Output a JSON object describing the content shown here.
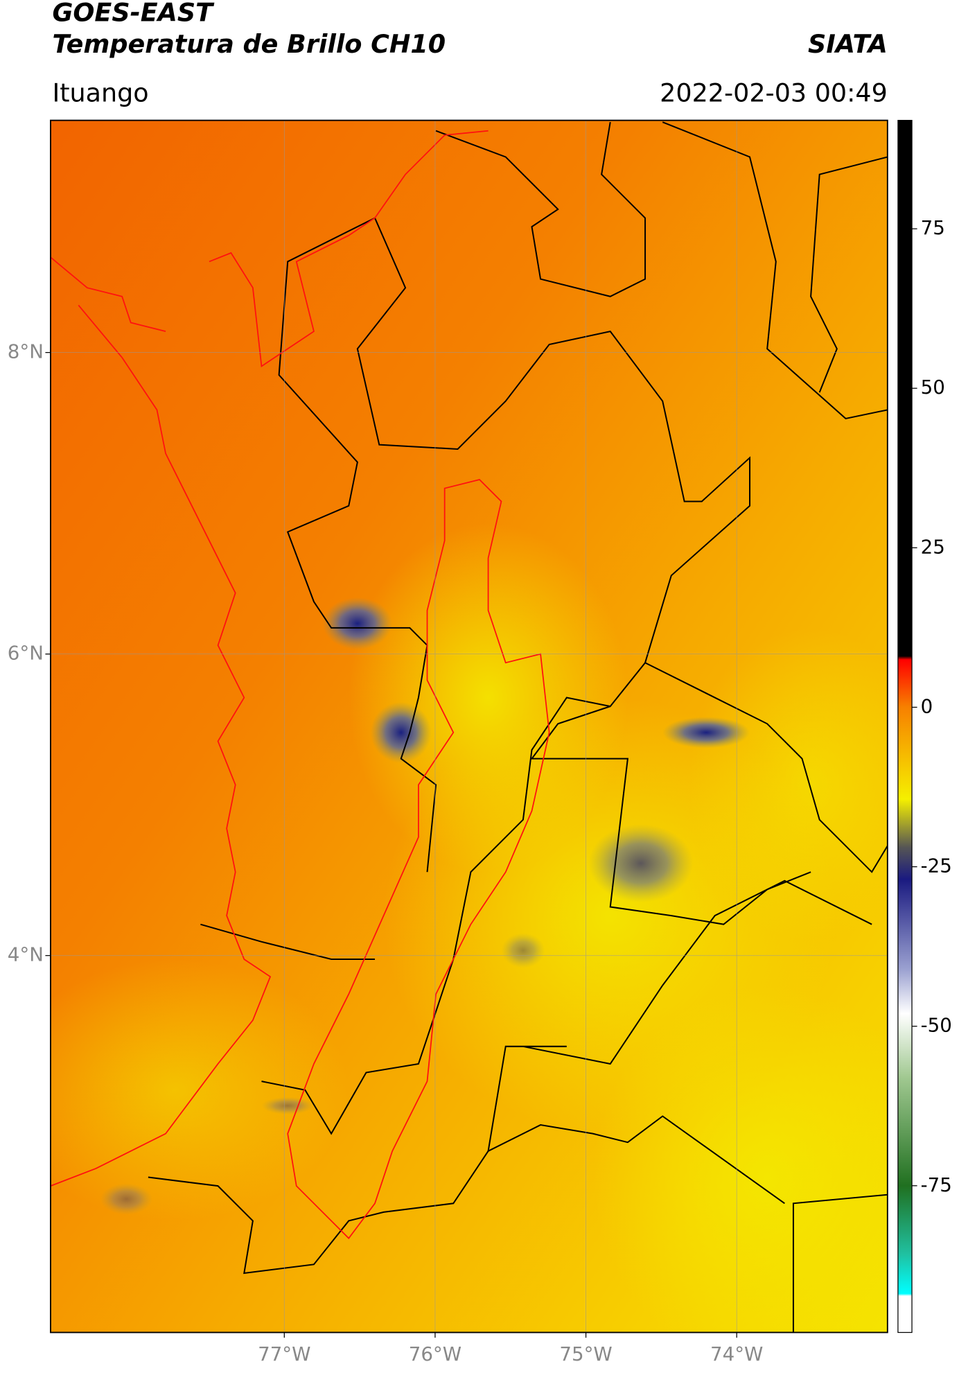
{
  "header": {
    "title": "GOES-EAST",
    "subtitle": "Temperatura de Brillo CH10",
    "source": "SIATA",
    "region": "Ituango",
    "timestamp": "2022-02-03 00:49"
  },
  "map": {
    "xlim": [
      -78.55,
      -73.0
    ],
    "ylim": [
      1.5,
      9.54
    ],
    "xticks": [
      {
        "value": -77,
        "label": "77°W"
      },
      {
        "value": -76,
        "label": "76°W"
      },
      {
        "value": -75,
        "label": "75°W"
      },
      {
        "value": -74,
        "label": "74°W"
      }
    ],
    "yticks": [
      {
        "value": 8,
        "label": "8°N"
      },
      {
        "value": 6,
        "label": "6°N"
      },
      {
        "value": 4,
        "label": "4°N"
      }
    ],
    "grid": true
  },
  "colorbar": {
    "lim": [
      -98,
      92
    ],
    "ticks": [
      75,
      50,
      25,
      0,
      -25,
      -50,
      -75
    ]
  }
}
